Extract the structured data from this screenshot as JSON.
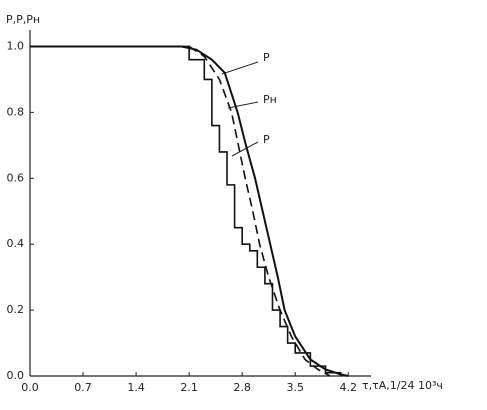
{
  "chart_data": {
    "type": "line",
    "y_label": "P,P,Pн",
    "x_label": "τ,τA,1/24  10³ч",
    "annotations": [
      "P",
      "Pн",
      "P"
    ],
    "xlim": [
      0,
      4.5
    ],
    "ylim": [
      0,
      1.05
    ],
    "xticks": [
      {
        "value": 0,
        "label": "0.0"
      },
      0.7,
      1.4,
      2.1,
      2.8,
      3.5,
      4.2
    ],
    "yticks": [
      {
        "value": 0,
        "label": "0.0"
      },
      0.2,
      0.4,
      0.6,
      0.8,
      {
        "value": 1,
        "label": "1.0"
      }
    ],
    "series": [
      {
        "style": "solid",
        "color": "#111111",
        "x": [
          0,
          2.0,
          2.2,
          2.4,
          2.57,
          2.74,
          2.85,
          2.97,
          3.07,
          3.17,
          3.27,
          3.36,
          3.5,
          3.7,
          3.9,
          4.1,
          4.2
        ],
        "values": [
          1.0,
          1.0,
          0.99,
          0.96,
          0.92,
          0.8,
          0.7,
          0.6,
          0.5,
          0.4,
          0.3,
          0.2,
          0.12,
          0.05,
          0.02,
          0.005,
          0
        ]
      },
      {
        "style": "dashed",
        "color": "#111111",
        "x": [
          2.1,
          2.3,
          2.5,
          2.66,
          2.75,
          2.84,
          2.94,
          3.03,
          3.15,
          3.3,
          3.45,
          3.63,
          3.8,
          3.96
        ],
        "values": [
          1.0,
          0.97,
          0.9,
          0.8,
          0.7,
          0.6,
          0.5,
          0.4,
          0.3,
          0.2,
          0.12,
          0.05,
          0.02,
          0
        ]
      },
      {
        "style": "step",
        "color": "#111111",
        "x": [
          0,
          2.1,
          2.3,
          2.4,
          2.5,
          2.6,
          2.7,
          2.8,
          2.9,
          3.0,
          3.1,
          3.2,
          3.3,
          3.4,
          3.5,
          3.7,
          3.9,
          4.1
        ],
        "values": [
          1.0,
          0.96,
          0.9,
          0.76,
          0.68,
          0.58,
          0.45,
          0.4,
          0.38,
          0.33,
          0.28,
          0.2,
          0.15,
          0.1,
          0.07,
          0.03,
          0.01,
          0
        ]
      }
    ]
  }
}
